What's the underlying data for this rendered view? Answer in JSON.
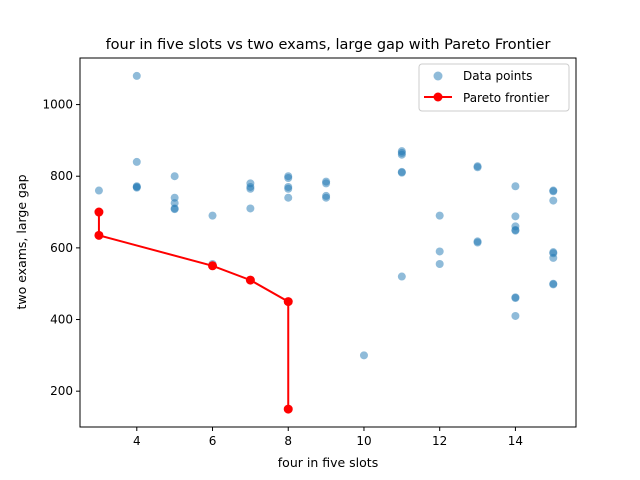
{
  "chart_data": {
    "type": "scatter",
    "title": "four in five slots vs two exams, large gap with Pareto Frontier",
    "xlabel": "four in five slots",
    "ylabel": "two exams, large gap",
    "xlim": [
      2.5,
      15.6
    ],
    "ylim": [
      100,
      1130
    ],
    "xticks": [
      4,
      6,
      8,
      10,
      12,
      14
    ],
    "yticks": [
      200,
      400,
      600,
      800,
      1000
    ],
    "grid": false,
    "legend_placement": "top-right",
    "colors": {
      "points": "#1f77b4",
      "frontier": "#ff0000"
    },
    "series": [
      {
        "name": "Data points",
        "kind": "scatter",
        "points": [
          [
            3,
            760
          ],
          [
            3,
            700
          ],
          [
            3,
            635
          ],
          [
            4,
            1080
          ],
          [
            4,
            840
          ],
          [
            4,
            770
          ],
          [
            4,
            768
          ],
          [
            4,
            772
          ],
          [
            5,
            800
          ],
          [
            5,
            740
          ],
          [
            5,
            725
          ],
          [
            5,
            710
          ],
          [
            5,
            708
          ],
          [
            6,
            690
          ],
          [
            6,
            555
          ],
          [
            6,
            550
          ],
          [
            7,
            780
          ],
          [
            7,
            770
          ],
          [
            7,
            765
          ],
          [
            7,
            710
          ],
          [
            7,
            510
          ],
          [
            8,
            800
          ],
          [
            8,
            795
          ],
          [
            8,
            770
          ],
          [
            8,
            765
          ],
          [
            8,
            740
          ],
          [
            8,
            450
          ],
          [
            8,
            150
          ],
          [
            9,
            785
          ],
          [
            9,
            780
          ],
          [
            9,
            745
          ],
          [
            9,
            740
          ],
          [
            10,
            300
          ],
          [
            11,
            870
          ],
          [
            11,
            865
          ],
          [
            11,
            860
          ],
          [
            11,
            812
          ],
          [
            11,
            810
          ],
          [
            11,
            520
          ],
          [
            12,
            690
          ],
          [
            12,
            590
          ],
          [
            12,
            555
          ],
          [
            13,
            828
          ],
          [
            13,
            825
          ],
          [
            13,
            618
          ],
          [
            13,
            615
          ],
          [
            14,
            772
          ],
          [
            14,
            688
          ],
          [
            14,
            660
          ],
          [
            14,
            650
          ],
          [
            14,
            648
          ],
          [
            14,
            462
          ],
          [
            14,
            460
          ],
          [
            14,
            410
          ],
          [
            15,
            760
          ],
          [
            15,
            758
          ],
          [
            15,
            732
          ],
          [
            15,
            588
          ],
          [
            15,
            585
          ],
          [
            15,
            572
          ],
          [
            15,
            500
          ],
          [
            15,
            498
          ]
        ]
      },
      {
        "name": "Pareto frontier",
        "kind": "line",
        "points": [
          [
            3,
            700
          ],
          [
            3,
            635
          ],
          [
            6,
            550
          ],
          [
            7,
            510
          ],
          [
            8,
            450
          ],
          [
            8,
            150
          ]
        ]
      }
    ]
  }
}
